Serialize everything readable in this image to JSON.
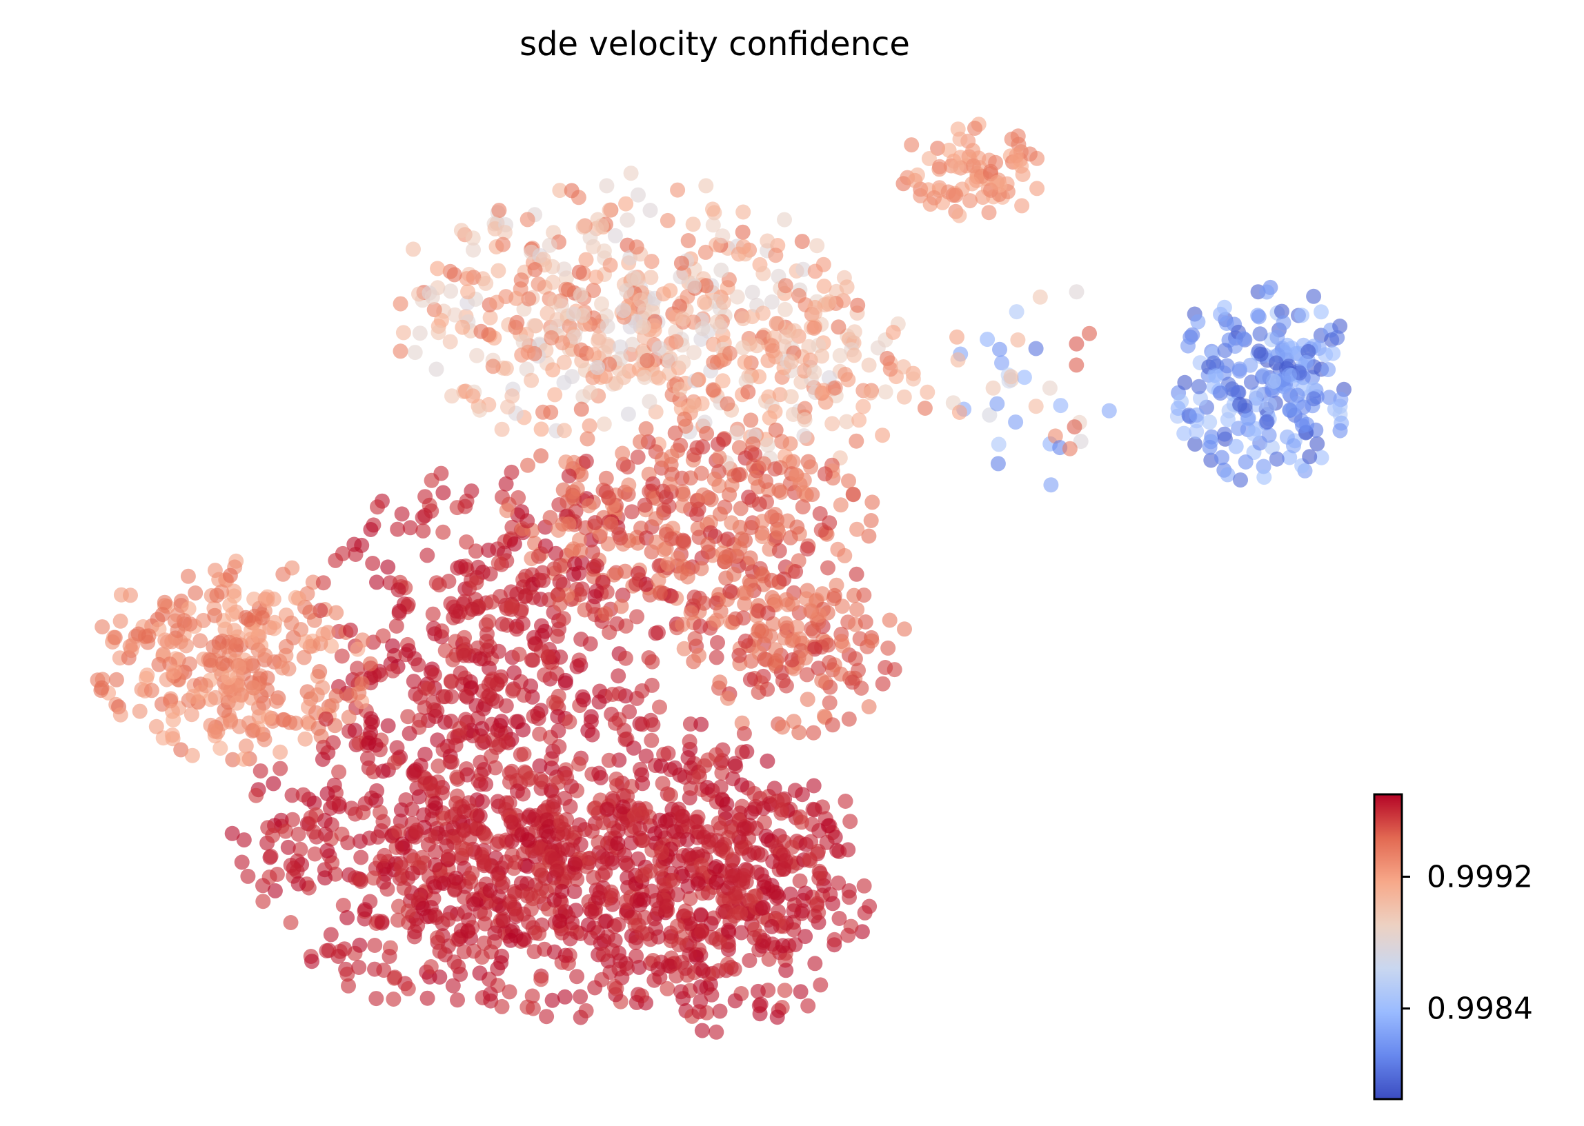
{
  "chart_data": {
    "type": "scatter",
    "title": "sde velocity confidence",
    "xlabel": "",
    "ylabel": "",
    "axes_visible": false,
    "grid": false,
    "colormap": "coolwarm",
    "color_range": [
      0.99785,
      0.9997
    ],
    "colorbar": {
      "placement": "lower-right",
      "ticks": [
        {
          "value": 0.9984,
          "label": "0.9984"
        },
        {
          "value": 0.9992,
          "label": "0.9992"
        }
      ]
    },
    "colormap_stops": [
      "#3b4cc0",
      "#6788ee",
      "#9abbff",
      "#c9d7f0",
      "#edd1c2",
      "#f7a889",
      "#e26952",
      "#b40426"
    ],
    "point_alpha": 0.6,
    "point_count_approx": 3000,
    "point_groups": [
      {
        "group": "lower-left lobe (bulk)",
        "confidence_range": [
          0.99955,
          0.9997
        ]
      },
      {
        "group": "left wing",
        "confidence_range": [
          0.99915,
          0.99945
        ]
      },
      {
        "group": "central band",
        "confidence_range": [
          0.9993,
          0.9996
        ]
      },
      {
        "group": "upper cloud",
        "confidence_range": [
          0.99875,
          0.99945
        ]
      },
      {
        "group": "upper-right small cluster",
        "confidence_range": [
          0.9991,
          0.9994
        ]
      },
      {
        "group": "right cluster",
        "confidence_range": [
          0.9979,
          0.9985
        ]
      },
      {
        "group": "connecting bridge",
        "confidence_range": [
          0.998,
          0.9995
        ]
      }
    ]
  }
}
